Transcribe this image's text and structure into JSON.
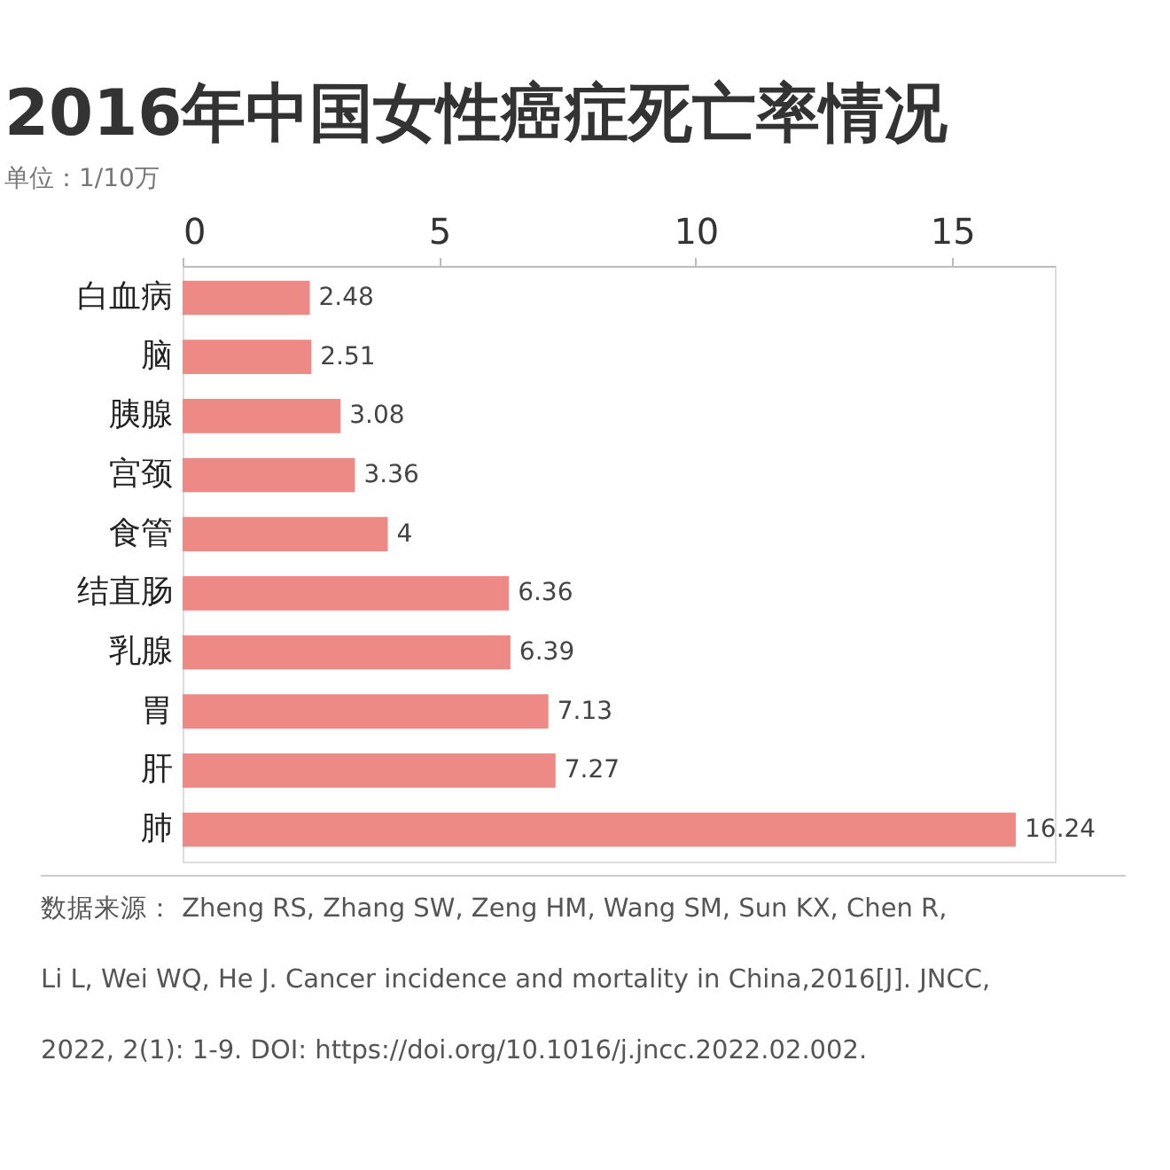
{
  "chart_data": {
    "type": "bar",
    "orientation": "horizontal",
    "title": "2016年中国女性癌症死亡率情况",
    "subtitle": "单位：1/10万",
    "categories": [
      "白血病",
      "脑",
      "胰腺",
      "宫颈",
      "食管",
      "结直肠",
      "乳腺",
      "胃",
      "肝",
      "肺"
    ],
    "values": [
      2.48,
      2.51,
      3.08,
      3.36,
      4,
      6.36,
      6.39,
      7.13,
      7.27,
      16.24
    ],
    "color": "#ee8a85",
    "xlim": [
      0,
      17
    ],
    "xticks": [
      0,
      5,
      10,
      15
    ],
    "grid": false,
    "data_labels": true,
    "annotations": [
      "数据来源：  Zheng RS, Zhang SW, Zeng HM, Wang SM, Sun KX, Chen R,\n Li L, Wei WQ, He J. Cancer incidence and mortality in China,2016[J]. JNCC,\n2022, 2(1): 1-9. DOI: https://doi.org/10.1016/j.jncc.2022.02.002."
    ]
  }
}
